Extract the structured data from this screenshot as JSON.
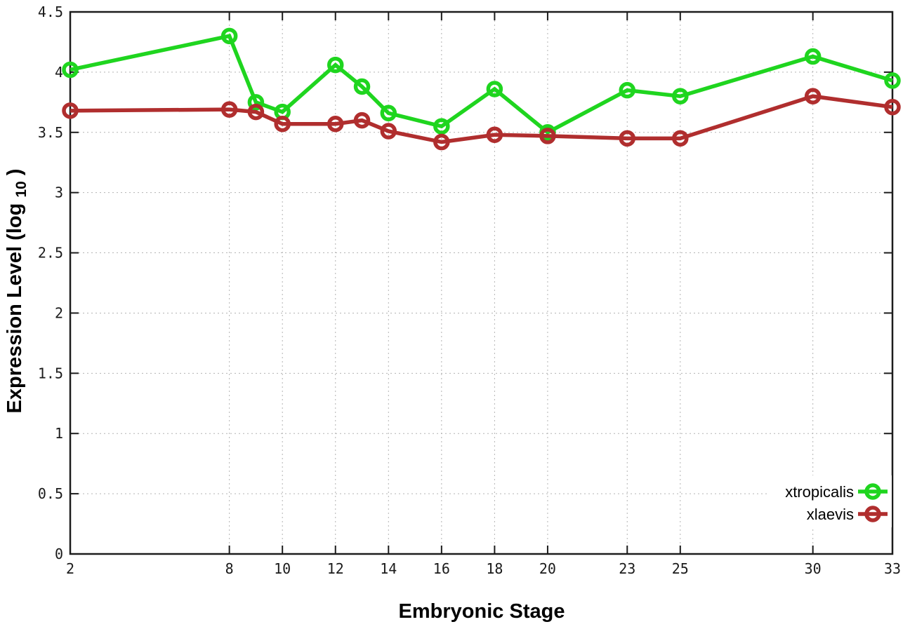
{
  "chart_data": {
    "type": "line",
    "title": "",
    "xlabel": "Embryonic Stage",
    "ylabel_main": "Expression Level (log",
    "ylabel_sub": "10",
    "ylabel_close": ")",
    "xlim": [
      2,
      33
    ],
    "ylim": [
      0,
      4.5
    ],
    "grid": true,
    "grid_style": "dotted",
    "legend_position": "bottom-right",
    "marker_style": "open-circle",
    "x": [
      2,
      8,
      9,
      10,
      12,
      13,
      14,
      16,
      18,
      20,
      23,
      25,
      30,
      33
    ],
    "xticks": {
      "values": [
        2,
        8,
        10,
        12,
        14,
        16,
        18,
        20,
        23,
        25,
        30,
        33
      ],
      "labels": [
        "2",
        "8",
        "10",
        "12",
        "14",
        "16",
        "18",
        "20",
        "23",
        "25",
        "30",
        "33"
      ]
    },
    "yticks": {
      "values": [
        0,
        0.5,
        1,
        1.5,
        2,
        2.5,
        3,
        3.5,
        4,
        4.5
      ],
      "labels": [
        "0",
        "0.5",
        "1",
        "1.5",
        "2",
        "2.5",
        "3",
        "3.5",
        "4",
        "4.5"
      ]
    },
    "series": [
      {
        "name": "xtropicalis",
        "color": "#1fd51f",
        "values": [
          4.02,
          4.3,
          3.75,
          3.67,
          4.06,
          3.88,
          3.66,
          3.55,
          3.86,
          3.5,
          3.85,
          3.8,
          4.13,
          3.93
        ]
      },
      {
        "name": "xlaevis",
        "color": "#b02e2e",
        "values": [
          3.68,
          3.69,
          3.67,
          3.57,
          3.57,
          3.6,
          3.51,
          3.42,
          3.48,
          3.47,
          3.45,
          3.45,
          3.8,
          3.71
        ]
      }
    ]
  }
}
